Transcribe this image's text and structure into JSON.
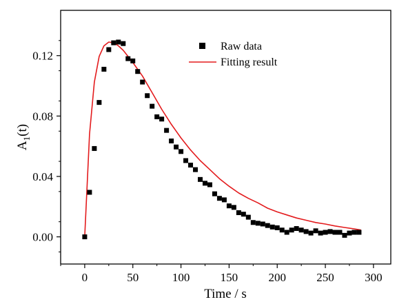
{
  "chart_data": {
    "type": "scatter",
    "title": "",
    "xlabel": "Time / s",
    "ylabel": "A",
    "ylabel_sub": "1",
    "ylabel_suffix": "(t)",
    "xlim": [
      -25,
      318
    ],
    "ylim": [
      -0.018,
      0.15
    ],
    "xticks": [
      0,
      50,
      100,
      150,
      200,
      250,
      300
    ],
    "xtick_labels": [
      "0",
      "50",
      "100",
      "150",
      "200",
      "250",
      "300"
    ],
    "yticks": [
      0.0,
      0.04,
      0.08,
      0.12
    ],
    "ytick_labels": [
      "0.00",
      "0.04",
      "0.08",
      "0.12"
    ],
    "grid": false,
    "legend_position": "top-right",
    "series": [
      {
        "name": "Raw data",
        "kind": "scatter",
        "color": "#000000",
        "marker": "square",
        "x": [
          0,
          5,
          10,
          15,
          20,
          25,
          30,
          35,
          40,
          45,
          50,
          55,
          60,
          65,
          70,
          75,
          80,
          85,
          90,
          95,
          100,
          105,
          110,
          115,
          120,
          125,
          130,
          135,
          140,
          145,
          150,
          155,
          160,
          165,
          170,
          175,
          180,
          185,
          190,
          195,
          200,
          205,
          210,
          215,
          220,
          225,
          230,
          235,
          240,
          245,
          250,
          255,
          260,
          265,
          270,
          275,
          280,
          285
        ],
        "y": [
          0.0,
          0.0295,
          0.0585,
          0.089,
          0.111,
          0.124,
          0.1285,
          0.129,
          0.128,
          0.118,
          0.1165,
          0.1095,
          0.1025,
          0.0935,
          0.0865,
          0.0795,
          0.078,
          0.0705,
          0.0635,
          0.0595,
          0.0565,
          0.0505,
          0.0475,
          0.0445,
          0.038,
          0.0355,
          0.0345,
          0.0285,
          0.0255,
          0.0245,
          0.0205,
          0.0195,
          0.016,
          0.015,
          0.013,
          0.0095,
          0.009,
          0.0085,
          0.0075,
          0.0065,
          0.006,
          0.0045,
          0.003,
          0.0045,
          0.0055,
          0.0045,
          0.0035,
          0.0025,
          0.004,
          0.0025,
          0.003,
          0.0035,
          0.003,
          0.003,
          0.001,
          0.0025,
          0.003,
          0.003
        ]
      },
      {
        "name": "Fitting result",
        "kind": "line",
        "color": "#e31a1c",
        "x": [
          0,
          5,
          10,
          15,
          20,
          25,
          30,
          35,
          40,
          50,
          60,
          70,
          80,
          90,
          100,
          110,
          120,
          130,
          140,
          150,
          160,
          170,
          180,
          190,
          200,
          210,
          220,
          230,
          240,
          250,
          260,
          270,
          280,
          287
        ],
        "y": [
          0.0,
          0.068,
          0.1025,
          0.1195,
          0.1265,
          0.129,
          0.1285,
          0.1265,
          0.1235,
          0.1155,
          0.1065,
          0.0955,
          0.0845,
          0.0745,
          0.0655,
          0.0575,
          0.0505,
          0.0445,
          0.0385,
          0.0335,
          0.029,
          0.0255,
          0.0225,
          0.019,
          0.0165,
          0.0145,
          0.0125,
          0.011,
          0.0095,
          0.0085,
          0.0072,
          0.0062,
          0.0053,
          0.0045
        ]
      }
    ]
  }
}
